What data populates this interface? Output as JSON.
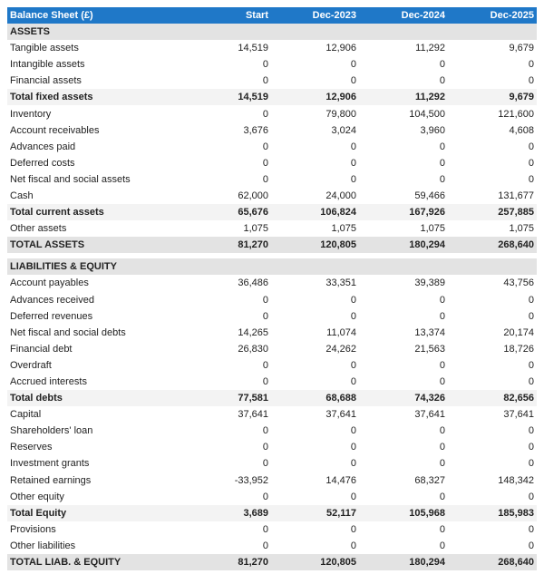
{
  "header": {
    "title": "Balance Sheet (£)",
    "columns": [
      "Start",
      "Dec-2023",
      "Dec-2024",
      "Dec-2025"
    ]
  },
  "colors": {
    "header_bg": "#1f78c8",
    "section_bg": "#e3e3e3",
    "total_bg": "#f3f3f3"
  },
  "assets": {
    "title": "ASSETS",
    "rows": [
      {
        "label": "Tangible assets",
        "values": [
          "14,519",
          "12,906",
          "11,292",
          "9,679"
        ],
        "type": "normal"
      },
      {
        "label": "Intangible assets",
        "values": [
          "0",
          "0",
          "0",
          "0"
        ],
        "type": "normal"
      },
      {
        "label": "Financial assets",
        "values": [
          "0",
          "0",
          "0",
          "0"
        ],
        "type": "normal"
      },
      {
        "label": "Total fixed assets",
        "values": [
          "14,519",
          "12,906",
          "11,292",
          "9,679"
        ],
        "type": "total"
      },
      {
        "label": "Inventory",
        "values": [
          "0",
          "79,800",
          "104,500",
          "121,600"
        ],
        "type": "normal"
      },
      {
        "label": "Account receivables",
        "values": [
          "3,676",
          "3,024",
          "3,960",
          "4,608"
        ],
        "type": "normal"
      },
      {
        "label": "Advances paid",
        "values": [
          "0",
          "0",
          "0",
          "0"
        ],
        "type": "normal"
      },
      {
        "label": "Deferred costs",
        "values": [
          "0",
          "0",
          "0",
          "0"
        ],
        "type": "normal"
      },
      {
        "label": "Net fiscal and social assets",
        "values": [
          "0",
          "0",
          "0",
          "0"
        ],
        "type": "normal"
      },
      {
        "label": "Cash",
        "values": [
          "62,000",
          "24,000",
          "59,466",
          "131,677"
        ],
        "type": "normal"
      },
      {
        "label": "Total current assets",
        "values": [
          "65,676",
          "106,824",
          "167,926",
          "257,885"
        ],
        "type": "total"
      },
      {
        "label": "Other assets",
        "values": [
          "1,075",
          "1,075",
          "1,075",
          "1,075"
        ],
        "type": "normal"
      },
      {
        "label": "TOTAL ASSETS",
        "values": [
          "81,270",
          "120,805",
          "180,294",
          "268,640"
        ],
        "type": "grand"
      }
    ]
  },
  "liabilities": {
    "title": "LIABILITIES & EQUITY",
    "rows": [
      {
        "label": "Account payables",
        "values": [
          "36,486",
          "33,351",
          "39,389",
          "43,756"
        ],
        "type": "normal"
      },
      {
        "label": "Advances received",
        "values": [
          "0",
          "0",
          "0",
          "0"
        ],
        "type": "normal"
      },
      {
        "label": "Deferred revenues",
        "values": [
          "0",
          "0",
          "0",
          "0"
        ],
        "type": "normal"
      },
      {
        "label": "Net fiscal and social debts",
        "values": [
          "14,265",
          "11,074",
          "13,374",
          "20,174"
        ],
        "type": "normal"
      },
      {
        "label": "Financial debt",
        "values": [
          "26,830",
          "24,262",
          "21,563",
          "18,726"
        ],
        "type": "normal"
      },
      {
        "label": "Overdraft",
        "values": [
          "0",
          "0",
          "0",
          "0"
        ],
        "type": "normal"
      },
      {
        "label": "Accrued interests",
        "values": [
          "0",
          "0",
          "0",
          "0"
        ],
        "type": "normal"
      },
      {
        "label": "Total debts",
        "values": [
          "77,581",
          "68,688",
          "74,326",
          "82,656"
        ],
        "type": "total"
      },
      {
        "label": "Capital",
        "values": [
          "37,641",
          "37,641",
          "37,641",
          "37,641"
        ],
        "type": "normal"
      },
      {
        "label": "Shareholders' loan",
        "values": [
          "0",
          "0",
          "0",
          "0"
        ],
        "type": "normal"
      },
      {
        "label": "Reserves",
        "values": [
          "0",
          "0",
          "0",
          "0"
        ],
        "type": "normal"
      },
      {
        "label": "Investment grants",
        "values": [
          "0",
          "0",
          "0",
          "0"
        ],
        "type": "normal"
      },
      {
        "label": "Retained earnings",
        "values": [
          "-33,952",
          "14,476",
          "68,327",
          "148,342"
        ],
        "type": "normal"
      },
      {
        "label": "Other equity",
        "values": [
          "0",
          "0",
          "0",
          "0"
        ],
        "type": "normal"
      },
      {
        "label": "Total Equity",
        "values": [
          "3,689",
          "52,117",
          "105,968",
          "185,983"
        ],
        "type": "total"
      },
      {
        "label": "Provisions",
        "values": [
          "0",
          "0",
          "0",
          "0"
        ],
        "type": "normal"
      },
      {
        "label": "Other liabilities",
        "values": [
          "0",
          "0",
          "0",
          "0"
        ],
        "type": "normal"
      },
      {
        "label": "TOTAL LIAB. & EQUITY",
        "values": [
          "81,270",
          "120,805",
          "180,294",
          "268,640"
        ],
        "type": "grand"
      }
    ]
  }
}
